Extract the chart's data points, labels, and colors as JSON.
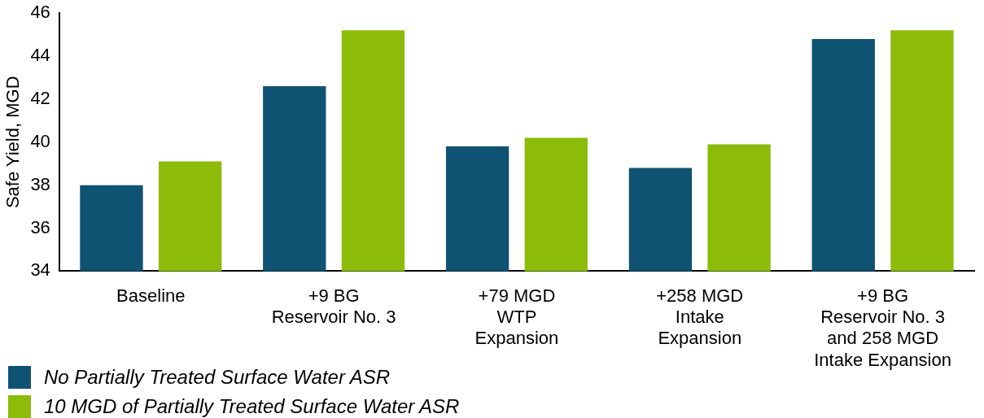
{
  "chart_data": {
    "type": "bar",
    "ylabel": "Safe Yield, MGD",
    "categories": [
      "Baseline",
      "+9 BG\nReservoir No. 3",
      "+79 MGD\nWTP\nExpansion",
      "+258 MGD\nIntake\nExpansion",
      "+9 BG\nReservoir No. 3\nand 258 MGD\nIntake Expansion"
    ],
    "series": [
      {
        "name": "No Partially Treated Surface Water ASR",
        "color": "#0f5272",
        "values": [
          38.0,
          42.6,
          39.8,
          38.8,
          44.8
        ]
      },
      {
        "name": "10 MGD of Partially Treated Surface Water ASR",
        "color": "#8cbb0a",
        "values": [
          39.1,
          45.2,
          40.2,
          39.9,
          45.2
        ]
      }
    ],
    "ylim": [
      34,
      46
    ],
    "yticks": [
      34,
      36,
      38,
      40,
      42,
      44,
      46
    ],
    "grid": false,
    "legend": "bottom left"
  }
}
